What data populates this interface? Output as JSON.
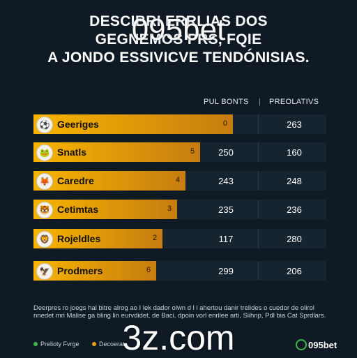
{
  "title_lines": [
    "DESCIBRI  ERRLIAS DOS",
    "GEGNEMOS  PRS, FQIE",
    "A JONDO ESSIVICVE TENDÓNISIAS."
  ],
  "watermark_top": "095bet",
  "watermark_bottom": "3z.com",
  "columns": [
    "PUL BONTS",
    "PREOLATIVS"
  ],
  "colors": {
    "bar_start": "#f7b500",
    "bar_end": "#c77c10",
    "background": "#0f1a24"
  },
  "chart_data": {
    "type": "bar",
    "categories": [
      "Geeriges",
      "Snatls",
      "Caredre",
      "Cetimtas",
      "Rojeldles",
      "Prodmers"
    ],
    "bar_labels": [
      "0",
      "5",
      "4",
      "3",
      "2",
      "6"
    ],
    "bar_fraction": [
      0.68,
      0.57,
      0.52,
      0.49,
      0.44,
      0.42
    ],
    "series": [
      {
        "name": "PUL BONTS",
        "values": [
          "",
          "250",
          "243",
          "235",
          "117",
          "299"
        ]
      },
      {
        "name": "PREOLATIVS",
        "values": [
          "263",
          "160",
          "248",
          "236",
          "280",
          "206"
        ]
      }
    ],
    "badge_icons": [
      "team-crest-icon",
      "team-crest-icon",
      "team-crest-icon",
      "team-crest-icon",
      "team-crest-icon",
      "team-crest-icon"
    ]
  },
  "note": "Deerpres ro joegs hal bitre alrog ao I lek dador olwn d l l ahertou danir trelides o cuedor de olirol nnedet mri Malise ga bling lin eurvdidet, de Baci, dpoin vorl enrilee arti, Siihnp, Pdl bia Cat Sprdlars.",
  "legend": [
    {
      "label": "Prelioty Fvrge",
      "color": "#3fb84a"
    },
    {
      "label": "Decoerat",
      "color": "#e8a21a"
    }
  ],
  "brand": "095bet"
}
